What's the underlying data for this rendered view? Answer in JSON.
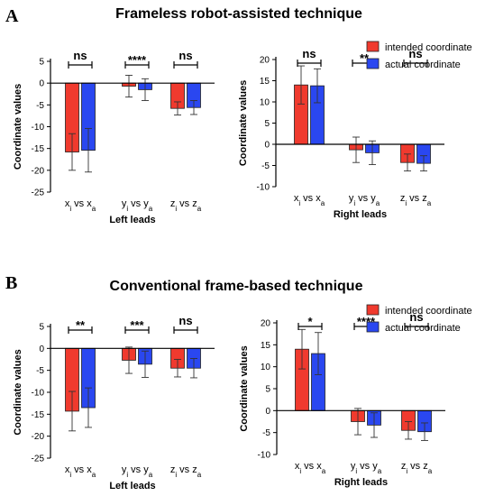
{
  "panels": [
    {
      "letter": "A",
      "title": "Frameless robot-assisted technique"
    },
    {
      "letter": "B",
      "title": "Conventional frame-based technique"
    }
  ],
  "colors": {
    "intended": "#f03a2e",
    "actual": "#2a47f0"
  },
  "chart_data": [
    {
      "type": "bar",
      "panel": "A",
      "side": "left",
      "xlabel": "Left leads",
      "ylabel": "Coordinate values",
      "ylim": [
        -25,
        5
      ],
      "yticks": [
        5,
        0,
        -5,
        -10,
        -15,
        -20,
        -25
      ],
      "categories": [
        {
          "main": "x",
          "sub": "i",
          "vs": "vs",
          "main2": "x",
          "sub2": "a"
        },
        {
          "main": "y",
          "sub": "i",
          "vs": "vs",
          "main2": "y",
          "sub2": "a"
        },
        {
          "main": "z",
          "sub": "i",
          "vs": "vs",
          "main2": "z",
          "sub2": "a"
        }
      ],
      "series": [
        {
          "values": [
            -15.8,
            -0.7,
            -5.8
          ],
          "errors": [
            4.2,
            2.5,
            1.5
          ]
        },
        {
          "values": [
            -15.4,
            -1.5,
            -5.6
          ],
          "errors": [
            5.0,
            2.5,
            1.6
          ]
        }
      ],
      "significance": [
        "ns",
        "****",
        "ns"
      ],
      "legend": null
    },
    {
      "type": "bar",
      "panel": "A",
      "side": "right",
      "xlabel": "Right leads",
      "ylabel": "Coordinate values",
      "ylim": [
        -10,
        20
      ],
      "yticks": [
        20,
        15,
        10,
        5,
        0,
        -5,
        -10
      ],
      "categories": [
        {
          "main": "x",
          "sub": "i",
          "vs": "vs",
          "main2": "x",
          "sub2": "a"
        },
        {
          "main": "y",
          "sub": "i",
          "vs": "vs",
          "main2": "y",
          "sub2": "a"
        },
        {
          "main": "z",
          "sub": "i",
          "vs": "vs",
          "main2": "z",
          "sub2": "a"
        }
      ],
      "series": [
        {
          "values": [
            14.0,
            -1.3,
            -4.3
          ],
          "errors": [
            4.5,
            3.0,
            2.0
          ]
        },
        {
          "values": [
            13.8,
            -2.0,
            -4.5
          ],
          "errors": [
            4.0,
            2.8,
            1.8
          ]
        }
      ],
      "significance": [
        "ns",
        "**",
        "ns"
      ],
      "legend": [
        "intended coordinate",
        "actual coordinate"
      ]
    },
    {
      "type": "bar",
      "panel": "B",
      "side": "left",
      "xlabel": "Left leads",
      "ylabel": "Coordinate values",
      "ylim": [
        -25,
        5
      ],
      "yticks": [
        5,
        0,
        -5,
        -10,
        -15,
        -20,
        -25
      ],
      "categories": [
        {
          "main": "x",
          "sub": "i",
          "vs": "vs",
          "main2": "x",
          "sub2": "a"
        },
        {
          "main": "y",
          "sub": "i",
          "vs": "vs",
          "main2": "y",
          "sub2": "a"
        },
        {
          "main": "z",
          "sub": "i",
          "vs": "vs",
          "main2": "z",
          "sub2": "a"
        }
      ],
      "series": [
        {
          "values": [
            -14.3,
            -2.7,
            -4.5
          ],
          "errors": [
            4.5,
            3.0,
            2.0
          ]
        },
        {
          "values": [
            -13.5,
            -3.6,
            -4.5
          ],
          "errors": [
            4.5,
            3.0,
            2.2
          ]
        }
      ],
      "significance": [
        "**",
        "***",
        "ns"
      ],
      "legend": null
    },
    {
      "type": "bar",
      "panel": "B",
      "side": "right",
      "xlabel": "Right leads",
      "ylabel": "Coordinate values",
      "ylim": [
        -10,
        20
      ],
      "yticks": [
        20,
        15,
        10,
        5,
        0,
        -5,
        -10
      ],
      "categories": [
        {
          "main": "x",
          "sub": "i",
          "vs": "vs",
          "main2": "x",
          "sub2": "a"
        },
        {
          "main": "y",
          "sub": "i",
          "vs": "vs",
          "main2": "y",
          "sub2": "a"
        },
        {
          "main": "z",
          "sub": "i",
          "vs": "vs",
          "main2": "z",
          "sub2": "a"
        }
      ],
      "series": [
        {
          "values": [
            14.0,
            -2.5,
            -4.5
          ],
          "errors": [
            4.5,
            3.0,
            2.0
          ]
        },
        {
          "values": [
            13.0,
            -3.3,
            -4.8
          ],
          "errors": [
            4.8,
            2.8,
            2.0
          ]
        }
      ],
      "significance": [
        "*",
        "****",
        "ns"
      ],
      "legend": [
        "intended coordinate",
        "actual coordinate"
      ]
    }
  ]
}
